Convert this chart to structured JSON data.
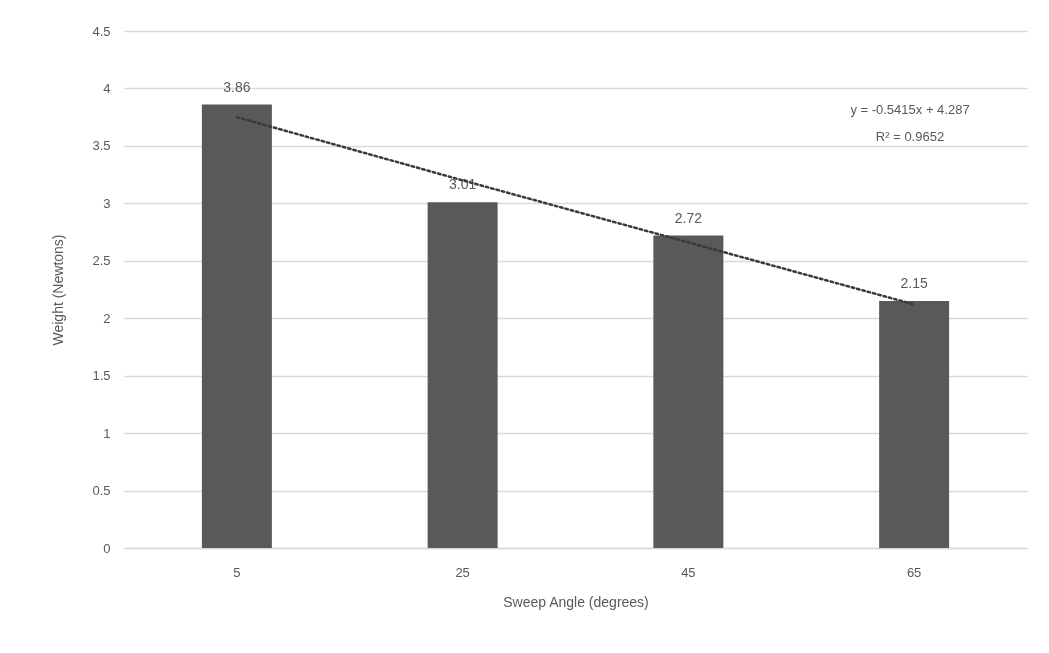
{
  "chart_data": {
    "type": "bar",
    "xlabel": "Sweep Angle (degrees)",
    "ylabel": "Weight (Newtons)",
    "categories": [
      "5",
      "25",
      "45",
      "65"
    ],
    "series": [
      {
        "color": "#595959",
        "values": [
          3.86,
          3.01,
          2.72,
          2.15
        ],
        "value_labels": [
          "3.86",
          "3.01",
          "2.72",
          "2.15"
        ]
      },
      {
        "type": "line",
        "color": "#3a3a3a",
        "line_style": "dotted",
        "values": [
          3.75,
          3.2,
          2.66,
          2.12
        ]
      }
    ],
    "ylim": [
      0,
      4.5
    ],
    "yticks": [
      0,
      0.5,
      1,
      1.5,
      2,
      2.5,
      3,
      3.5,
      4,
      4.5
    ],
    "grid": "y",
    "annotations": [
      "y = -0.5415x + 4.287",
      "R² = 0.9652"
    ]
  }
}
